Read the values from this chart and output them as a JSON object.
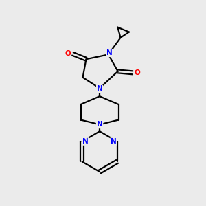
{
  "bg_color": "#ebebeb",
  "bond_color": "#000000",
  "N_color": "#0000ff",
  "O_color": "#ff0000",
  "line_width": 1.6,
  "figsize": [
    3.0,
    3.0
  ],
  "dpi": 100,
  "xlim": [
    0,
    3.0
  ],
  "ylim": [
    0,
    3.0
  ]
}
